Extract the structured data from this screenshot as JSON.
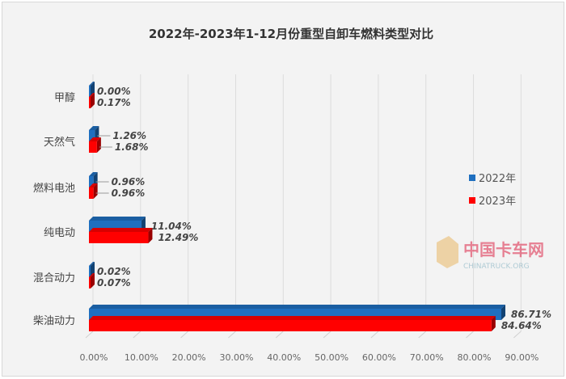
{
  "chart_data": {
    "type": "bar",
    "orientation": "horizontal",
    "style": "3d-clustered",
    "title": "2022年-2023年1-12月份重型自卸车燃料类型对比",
    "categories": [
      "甲醇",
      "天然气",
      "燃料电池",
      "纯电动",
      "混合动力",
      "柴油动力"
    ],
    "series": [
      {
        "name": "2022年",
        "color": "#1f6fbf",
        "values": [
          0.0,
          1.26,
          0.96,
          11.04,
          0.02,
          86.71
        ],
        "labels": [
          "0.00%",
          "1.26%",
          "0.96%",
          "11.04%",
          "0.02%",
          "86.71%"
        ]
      },
      {
        "name": "2023年",
        "color": "#ff0000",
        "values": [
          0.17,
          1.68,
          0.96,
          12.49,
          0.07,
          84.64
        ],
        "labels": [
          "0.17%",
          "1.68%",
          "0.96%",
          "12.49%",
          "0.07%",
          "84.64%"
        ]
      }
    ],
    "xlim": [
      0,
      90
    ],
    "xticks": [
      "0.00%",
      "10.00%",
      "20.00%",
      "30.00%",
      "40.00%",
      "50.00%",
      "60.00%",
      "70.00%",
      "80.00%",
      "90.00%"
    ],
    "grid": "vertical",
    "legend_position": "right",
    "watermark": "中国卡车网 CHINATRUCK.ORG"
  }
}
